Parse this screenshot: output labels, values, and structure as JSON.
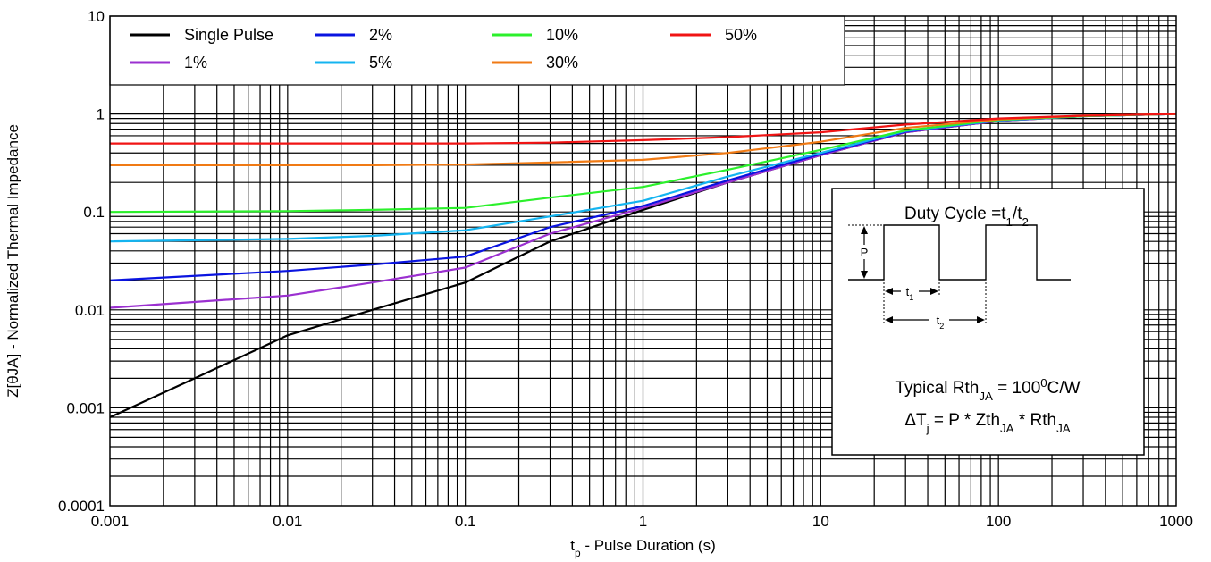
{
  "chart_data": {
    "type": "line",
    "xlabel": "t",
    "xlabel_sub": "p",
    "xlabel_rest": " - Pulse Duration (s)",
    "ylabel": "Z[θJA] - Normalized Thermal Impedance",
    "x_scale": "log",
    "y_scale": "log",
    "xlim": [
      0.001,
      1000
    ],
    "ylim": [
      0.0001,
      10
    ],
    "grid": true,
    "legend_position": "top-left",
    "x_tick_labels": [
      "0.001",
      "0.01",
      "0.1",
      "1",
      "10",
      "100",
      "1000"
    ],
    "y_tick_labels": [
      "0.0001",
      "0.001",
      "0.01",
      "0.1",
      "1",
      "10"
    ],
    "x_ticks": [
      0.001,
      0.01,
      0.1,
      1,
      10,
      100,
      1000
    ],
    "y_ticks": [
      0.0001,
      0.001,
      0.01,
      0.1,
      1,
      10
    ],
    "series": [
      {
        "name": "Single Pulse",
        "color": "#000000",
        "x": [
          0.001,
          0.003,
          0.01,
          0.03,
          0.1,
          0.3,
          1,
          3,
          10,
          30,
          100,
          300,
          1000
        ],
        "y": [
          0.0008,
          0.002,
          0.0055,
          0.01,
          0.019,
          0.05,
          0.105,
          0.2,
          0.38,
          0.65,
          0.85,
          0.95,
          1.0
        ]
      },
      {
        "name": "1%",
        "color": "#9b30d0",
        "x": [
          0.001,
          0.01,
          0.03,
          0.1,
          0.3,
          1,
          3,
          10,
          30,
          100,
          300,
          1000
        ],
        "y": [
          0.0105,
          0.014,
          0.019,
          0.027,
          0.06,
          0.11,
          0.2,
          0.38,
          0.65,
          0.85,
          0.95,
          1.0
        ]
      },
      {
        "name": "2%",
        "color": "#0a14e0",
        "x": [
          0.001,
          0.01,
          0.03,
          0.1,
          0.3,
          1,
          3,
          10,
          30,
          100,
          300,
          1000
        ],
        "y": [
          0.02,
          0.025,
          0.029,
          0.035,
          0.07,
          0.115,
          0.21,
          0.39,
          0.66,
          0.86,
          0.95,
          1.0
        ]
      },
      {
        "name": "5%",
        "color": "#14b4f0",
        "x": [
          0.001,
          0.01,
          0.03,
          0.1,
          0.3,
          1,
          3,
          10,
          30,
          100,
          300,
          1000
        ],
        "y": [
          0.05,
          0.053,
          0.057,
          0.065,
          0.09,
          0.13,
          0.23,
          0.4,
          0.67,
          0.86,
          0.95,
          1.0
        ]
      },
      {
        "name": "10%",
        "color": "#2cf02c",
        "x": [
          0.001,
          0.01,
          0.03,
          0.1,
          0.3,
          1,
          3,
          10,
          30,
          100,
          300,
          1000
        ],
        "y": [
          0.1,
          0.102,
          0.105,
          0.11,
          0.14,
          0.18,
          0.27,
          0.43,
          0.68,
          0.87,
          0.95,
          1.0
        ]
      },
      {
        "name": "30%",
        "color": "#f07a14",
        "x": [
          0.001,
          0.01,
          0.03,
          0.1,
          0.3,
          1,
          3,
          10,
          30,
          100,
          300,
          1000
        ],
        "y": [
          0.3,
          0.3,
          0.3,
          0.305,
          0.32,
          0.34,
          0.4,
          0.52,
          0.72,
          0.88,
          0.96,
          1.0
        ]
      },
      {
        "name": "50%",
        "color": "#f01414",
        "x": [
          0.001,
          0.01,
          0.03,
          0.1,
          0.3,
          1,
          3,
          10,
          30,
          100,
          300,
          1000
        ],
        "y": [
          0.5,
          0.5,
          0.5,
          0.5,
          0.51,
          0.54,
          0.58,
          0.65,
          0.78,
          0.9,
          0.96,
          1.0
        ]
      }
    ],
    "inset": {
      "title": "Duty Cycle =t",
      "title_sub1": "1",
      "title_mid": "/t",
      "title_sub2": "2",
      "p_label": "P",
      "t1_label": "t",
      "t1_sub": "1",
      "t2_label": "t",
      "t2_sub": "2",
      "rth_prefix": "Typical Rth",
      "rth_sub": "JA",
      "rth_eq": " = 100",
      "rth_sup": "0",
      "rth_unit": "C/W",
      "dt_prefix": "ΔT",
      "dt_sub": "j",
      "dt_mid": " = P * Zth",
      "dt_sub2": "JA",
      "dt_mid2": " * Rth",
      "dt_sub3": "JA"
    }
  }
}
